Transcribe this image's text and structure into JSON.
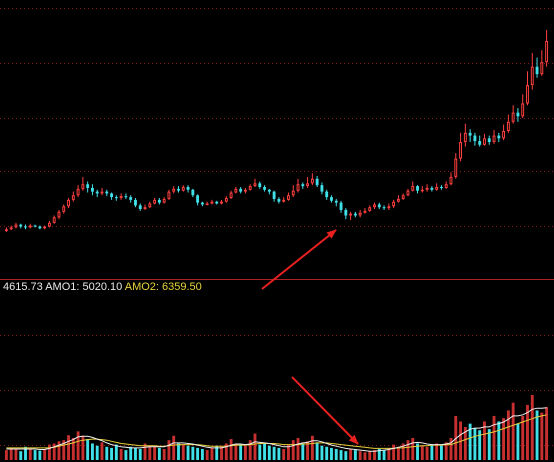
{
  "readout": {
    "value": "4615.73",
    "amo1_label": "AMO1:",
    "amo1_value": "5020.10",
    "amo2_label": "AMO2:",
    "amo2_value": "6359.50"
  },
  "colors": {
    "background": "#000000",
    "up": "#ff4040",
    "down": "#40e0e8",
    "grid": "#8a1a1a",
    "amo1_line": "#f0f0f0",
    "amo2_line": "#e6d23c",
    "arrow": "#e82020"
  },
  "chart_data": [
    {
      "type": "candlestick",
      "panel": "price",
      "grid": "horizontal dotted",
      "candles": [
        {
          "o": 21,
          "c": 23,
          "h": 25,
          "l": 20
        },
        {
          "o": 23,
          "c": 25,
          "h": 27,
          "l": 22
        },
        {
          "o": 25,
          "c": 28,
          "h": 30,
          "l": 24
        },
        {
          "o": 28,
          "c": 26,
          "h": 29,
          "l": 24
        },
        {
          "o": 26,
          "c": 25,
          "h": 28,
          "l": 23
        },
        {
          "o": 25,
          "c": 27,
          "h": 29,
          "l": 24
        },
        {
          "o": 27,
          "c": 26,
          "h": 28,
          "l": 25
        },
        {
          "o": 26,
          "c": 24,
          "h": 27,
          "l": 23
        },
        {
          "o": 24,
          "c": 26,
          "h": 27,
          "l": 23
        },
        {
          "o": 26,
          "c": 30,
          "h": 32,
          "l": 25
        },
        {
          "o": 30,
          "c": 36,
          "h": 38,
          "l": 29
        },
        {
          "o": 36,
          "c": 42,
          "h": 44,
          "l": 34
        },
        {
          "o": 42,
          "c": 48,
          "h": 50,
          "l": 40
        },
        {
          "o": 48,
          "c": 55,
          "h": 57,
          "l": 46
        },
        {
          "o": 55,
          "c": 60,
          "h": 64,
          "l": 53
        },
        {
          "o": 60,
          "c": 67,
          "h": 71,
          "l": 58
        },
        {
          "o": 67,
          "c": 72,
          "h": 80,
          "l": 65
        },
        {
          "o": 72,
          "c": 68,
          "h": 75,
          "l": 63
        },
        {
          "o": 68,
          "c": 64,
          "h": 72,
          "l": 60
        },
        {
          "o": 64,
          "c": 62,
          "h": 66,
          "l": 58
        },
        {
          "o": 62,
          "c": 64,
          "h": 68,
          "l": 60
        },
        {
          "o": 64,
          "c": 62,
          "h": 66,
          "l": 59
        },
        {
          "o": 62,
          "c": 58,
          "h": 63,
          "l": 55
        },
        {
          "o": 58,
          "c": 57,
          "h": 60,
          "l": 54
        },
        {
          "o": 57,
          "c": 59,
          "h": 62,
          "l": 55
        },
        {
          "o": 59,
          "c": 58,
          "h": 62,
          "l": 56
        },
        {
          "o": 58,
          "c": 55,
          "h": 60,
          "l": 52
        },
        {
          "o": 55,
          "c": 49,
          "h": 57,
          "l": 47
        },
        {
          "o": 49,
          "c": 45,
          "h": 51,
          "l": 43
        },
        {
          "o": 45,
          "c": 47,
          "h": 50,
          "l": 44
        },
        {
          "o": 47,
          "c": 51,
          "h": 53,
          "l": 46
        },
        {
          "o": 51,
          "c": 55,
          "h": 57,
          "l": 50
        },
        {
          "o": 55,
          "c": 52,
          "h": 57,
          "l": 50
        },
        {
          "o": 52,
          "c": 56,
          "h": 58,
          "l": 51
        },
        {
          "o": 56,
          "c": 64,
          "h": 66,
          "l": 55
        },
        {
          "o": 64,
          "c": 67,
          "h": 70,
          "l": 62
        },
        {
          "o": 67,
          "c": 65,
          "h": 70,
          "l": 63
        },
        {
          "o": 65,
          "c": 69,
          "h": 71,
          "l": 64
        },
        {
          "o": 69,
          "c": 66,
          "h": 71,
          "l": 63
        },
        {
          "o": 66,
          "c": 60,
          "h": 67,
          "l": 58
        },
        {
          "o": 60,
          "c": 52,
          "h": 61,
          "l": 49
        },
        {
          "o": 52,
          "c": 50,
          "h": 53,
          "l": 48
        },
        {
          "o": 50,
          "c": 51,
          "h": 53,
          "l": 49
        },
        {
          "o": 51,
          "c": 53,
          "h": 55,
          "l": 50
        },
        {
          "o": 53,
          "c": 51,
          "h": 54,
          "l": 50
        },
        {
          "o": 51,
          "c": 53,
          "h": 55,
          "l": 50
        },
        {
          "o": 53,
          "c": 57,
          "h": 59,
          "l": 52
        },
        {
          "o": 57,
          "c": 63,
          "h": 65,
          "l": 56
        },
        {
          "o": 63,
          "c": 67,
          "h": 69,
          "l": 62
        },
        {
          "o": 67,
          "c": 64,
          "h": 69,
          "l": 62
        },
        {
          "o": 64,
          "c": 66,
          "h": 68,
          "l": 62
        },
        {
          "o": 66,
          "c": 70,
          "h": 72,
          "l": 65
        },
        {
          "o": 70,
          "c": 73,
          "h": 78,
          "l": 69
        },
        {
          "o": 73,
          "c": 69,
          "h": 75,
          "l": 67
        },
        {
          "o": 69,
          "c": 66,
          "h": 71,
          "l": 64
        },
        {
          "o": 66,
          "c": 64,
          "h": 67,
          "l": 61
        },
        {
          "o": 64,
          "c": 56,
          "h": 65,
          "l": 53
        },
        {
          "o": 56,
          "c": 53,
          "h": 58,
          "l": 51
        },
        {
          "o": 53,
          "c": 55,
          "h": 58,
          "l": 52
        },
        {
          "o": 55,
          "c": 60,
          "h": 63,
          "l": 54
        },
        {
          "o": 60,
          "c": 65,
          "h": 71,
          "l": 58
        },
        {
          "o": 65,
          "c": 72,
          "h": 78,
          "l": 63
        },
        {
          "o": 72,
          "c": 70,
          "h": 74,
          "l": 67
        },
        {
          "o": 70,
          "c": 73,
          "h": 80,
          "l": 68
        },
        {
          "o": 73,
          "c": 78,
          "h": 84,
          "l": 71
        },
        {
          "o": 78,
          "c": 71,
          "h": 81,
          "l": 69
        },
        {
          "o": 71,
          "c": 64,
          "h": 74,
          "l": 61
        },
        {
          "o": 64,
          "c": 58,
          "h": 66,
          "l": 55
        },
        {
          "o": 58,
          "c": 54,
          "h": 60,
          "l": 52
        },
        {
          "o": 54,
          "c": 52,
          "h": 56,
          "l": 48
        },
        {
          "o": 52,
          "c": 44,
          "h": 54,
          "l": 41
        },
        {
          "o": 44,
          "c": 38,
          "h": 46,
          "l": 34
        },
        {
          "o": 38,
          "c": 40,
          "h": 42,
          "l": 33
        },
        {
          "o": 40,
          "c": 38,
          "h": 42,
          "l": 36
        },
        {
          "o": 38,
          "c": 41,
          "h": 44,
          "l": 36
        },
        {
          "o": 41,
          "c": 43,
          "h": 46,
          "l": 40
        },
        {
          "o": 43,
          "c": 47,
          "h": 49,
          "l": 42
        },
        {
          "o": 47,
          "c": 50,
          "h": 52,
          "l": 45
        },
        {
          "o": 50,
          "c": 47,
          "h": 52,
          "l": 45
        },
        {
          "o": 47,
          "c": 46,
          "h": 49,
          "l": 44
        },
        {
          "o": 46,
          "c": 48,
          "h": 51,
          "l": 44
        },
        {
          "o": 48,
          "c": 53,
          "h": 55,
          "l": 46
        },
        {
          "o": 53,
          "c": 56,
          "h": 60,
          "l": 52
        },
        {
          "o": 56,
          "c": 60,
          "h": 62,
          "l": 55
        },
        {
          "o": 60,
          "c": 65,
          "h": 67,
          "l": 59
        },
        {
          "o": 65,
          "c": 70,
          "h": 75,
          "l": 64
        },
        {
          "o": 70,
          "c": 65,
          "h": 71,
          "l": 62
        },
        {
          "o": 65,
          "c": 66,
          "h": 70,
          "l": 63
        },
        {
          "o": 66,
          "c": 68,
          "h": 72,
          "l": 64
        },
        {
          "o": 68,
          "c": 66,
          "h": 70,
          "l": 64
        },
        {
          "o": 66,
          "c": 69,
          "h": 73,
          "l": 65
        },
        {
          "o": 69,
          "c": 68,
          "h": 71,
          "l": 66
        },
        {
          "o": 68,
          "c": 72,
          "h": 75,
          "l": 67
        },
        {
          "o": 72,
          "c": 80,
          "h": 85,
          "l": 71
        },
        {
          "o": 80,
          "c": 100,
          "h": 106,
          "l": 78
        },
        {
          "o": 100,
          "c": 118,
          "h": 128,
          "l": 97
        },
        {
          "o": 118,
          "c": 128,
          "h": 138,
          "l": 113
        },
        {
          "o": 128,
          "c": 125,
          "h": 132,
          "l": 118
        },
        {
          "o": 125,
          "c": 119,
          "h": 128,
          "l": 114
        },
        {
          "o": 119,
          "c": 115,
          "h": 125,
          "l": 113
        },
        {
          "o": 115,
          "c": 122,
          "h": 127,
          "l": 114
        },
        {
          "o": 122,
          "c": 118,
          "h": 125,
          "l": 115
        },
        {
          "o": 118,
          "c": 125,
          "h": 131,
          "l": 116
        },
        {
          "o": 125,
          "c": 122,
          "h": 128,
          "l": 118
        },
        {
          "o": 122,
          "c": 130,
          "h": 137,
          "l": 120
        },
        {
          "o": 130,
          "c": 140,
          "h": 148,
          "l": 128
        },
        {
          "o": 140,
          "c": 150,
          "h": 158,
          "l": 138
        },
        {
          "o": 150,
          "c": 146,
          "h": 155,
          "l": 140
        },
        {
          "o": 146,
          "c": 160,
          "h": 170,
          "l": 144
        },
        {
          "o": 160,
          "c": 180,
          "h": 195,
          "l": 158
        },
        {
          "o": 180,
          "c": 200,
          "h": 215,
          "l": 175
        },
        {
          "o": 200,
          "c": 192,
          "h": 210,
          "l": 188
        },
        {
          "o": 192,
          "c": 205,
          "h": 218,
          "l": 190
        },
        {
          "o": 205,
          "c": 228,
          "h": 240,
          "l": 200
        }
      ]
    },
    {
      "type": "bar",
      "panel": "volume",
      "series": [
        {
          "name": "AMO1",
          "type": "line"
        },
        {
          "name": "AMO2",
          "type": "line"
        }
      ],
      "volumes": [
        18,
        22,
        20,
        16,
        24,
        20,
        18,
        17,
        19,
        28,
        30,
        34,
        36,
        45,
        40,
        52,
        44,
        38,
        30,
        26,
        32,
        24,
        22,
        28,
        20,
        18,
        24,
        22,
        20,
        30,
        26,
        24,
        22,
        20,
        36,
        44,
        30,
        28,
        26,
        24,
        22,
        20,
        18,
        22,
        26,
        24,
        30,
        38,
        30,
        28,
        26,
        36,
        48,
        28,
        30,
        26,
        24,
        22,
        20,
        28,
        36,
        40,
        30,
        34,
        44,
        32,
        26,
        24,
        22,
        20,
        18,
        16,
        20,
        18,
        16,
        14,
        16,
        18,
        20,
        18,
        22,
        28,
        24,
        30,
        36,
        40,
        30,
        26,
        24,
        28,
        30,
        26,
        32,
        40,
        80,
        70,
        60,
        66,
        58,
        54,
        70,
        56,
        80,
        70,
        76,
        90,
        104,
        66,
        80,
        100,
        118,
        90,
        86,
        96
      ],
      "amo1": [
        20,
        20,
        20,
        20,
        20,
        20,
        20,
        19,
        19,
        21,
        24,
        27,
        30,
        34,
        37,
        42,
        43,
        43,
        41,
        38,
        35,
        31,
        28,
        26,
        24,
        23,
        22,
        22,
        22,
        23,
        24,
        24,
        24,
        24,
        27,
        31,
        31,
        31,
        30,
        29,
        27,
        25,
        23,
        22,
        22,
        22,
        24,
        27,
        29,
        29,
        28,
        29,
        33,
        32,
        31,
        30,
        28,
        26,
        24,
        24,
        26,
        29,
        31,
        32,
        35,
        35,
        33,
        30,
        27,
        25,
        23,
        21,
        20,
        19,
        18,
        17,
        16,
        16,
        17,
        18,
        19,
        21,
        23,
        25,
        28,
        31,
        32,
        31,
        29,
        28,
        28,
        28,
        29,
        31,
        39,
        46,
        51,
        56,
        58,
        58,
        60,
        60,
        64,
        66,
        69,
        74,
        80,
        80,
        82,
        86,
        92,
        94,
        94,
        95
      ],
      "amo2": [
        22,
        22,
        22,
        22,
        22,
        22,
        22,
        22,
        22,
        22,
        23,
        25,
        27,
        29,
        31,
        34,
        36,
        37,
        38,
        38,
        37,
        36,
        34,
        32,
        30,
        29,
        28,
        27,
        26,
        26,
        26,
        26,
        25,
        25,
        26,
        27,
        28,
        28,
        28,
        28,
        28,
        27,
        26,
        25,
        25,
        25,
        25,
        26,
        27,
        27,
        27,
        28,
        29,
        30,
        30,
        30,
        30,
        29,
        28,
        28,
        28,
        28,
        29,
        29,
        30,
        31,
        31,
        31,
        30,
        29,
        28,
        27,
        26,
        25,
        24,
        23,
        22,
        21,
        21,
        21,
        21,
        21,
        22,
        22,
        23,
        24,
        25,
        26,
        26,
        27,
        27,
        27,
        28,
        28,
        31,
        34,
        37,
        40,
        43,
        45,
        47,
        49,
        51,
        54,
        57,
        60,
        63,
        66,
        69,
        72,
        75,
        78,
        80,
        82
      ]
    }
  ]
}
